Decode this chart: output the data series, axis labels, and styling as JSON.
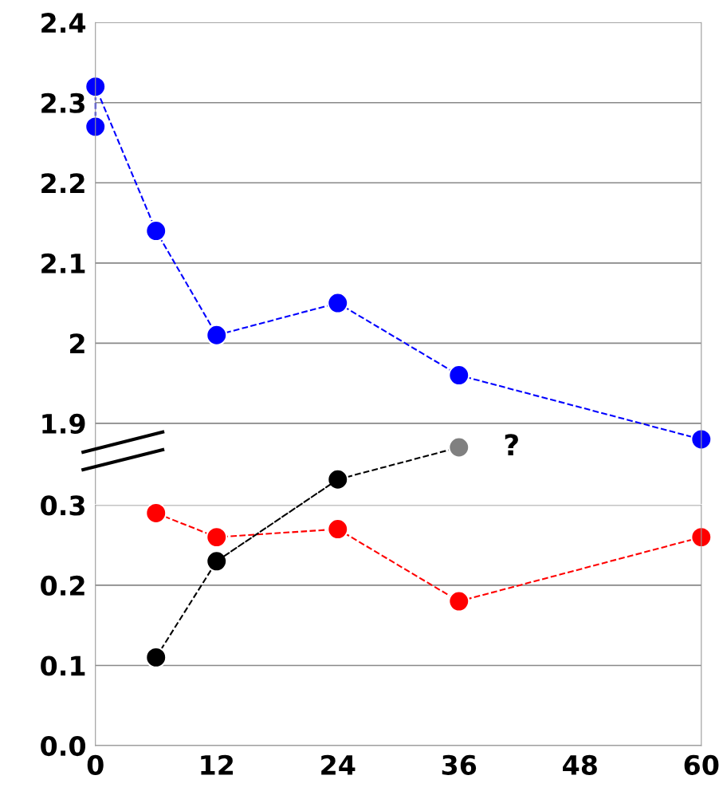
{
  "chart_data": [
    {
      "type": "line",
      "xlim": [
        0,
        60
      ],
      "ylim": [
        1.8,
        2.4
      ],
      "yticks": [
        1.9,
        {
          "value": 2.0,
          "label": "2"
        },
        2.1,
        2.2,
        2.3,
        2.4
      ],
      "tick_labels": "y",
      "grid": "y",
      "marker": "circle",
      "line_style": "dashed",
      "legend": false,
      "series": [
        {
          "color": "#0000ff",
          "x": [
            0,
            0,
            6,
            12,
            24,
            36,
            60
          ],
          "values": [
            2.27,
            2.32,
            2.14,
            2.01,
            2.05,
            1.96,
            1.88
          ]
        },
        {
          "color": "#000000",
          "colors": [
            "#000000",
            "#808080"
          ],
          "x": [
            24,
            36
          ],
          "values": [
            1.83,
            1.87
          ]
        }
      ],
      "annotations": [
        {
          "text": "?",
          "x": 36,
          "y": 1.87
        }
      ]
    },
    {
      "type": "line",
      "xlim": [
        0,
        60
      ],
      "xticks": [
        0,
        12,
        24,
        36,
        48,
        60
      ],
      "ylim": [
        0,
        0.3
      ],
      "yticks": [
        {
          "value": 0,
          "label": "0.0"
        },
        0.1,
        0.2,
        0.3
      ],
      "grid": "y",
      "marker": "circle",
      "line_style": "dashed",
      "legend": false,
      "series": [
        {
          "color": "#ff0000",
          "x": [
            6,
            12,
            24,
            36,
            60
          ],
          "values": [
            0.29,
            0.26,
            0.27,
            0.18,
            0.26
          ]
        },
        {
          "color": "#000000",
          "x": [
            6,
            12
          ],
          "values": [
            0.11,
            0.23
          ]
        }
      ]
    }
  ]
}
